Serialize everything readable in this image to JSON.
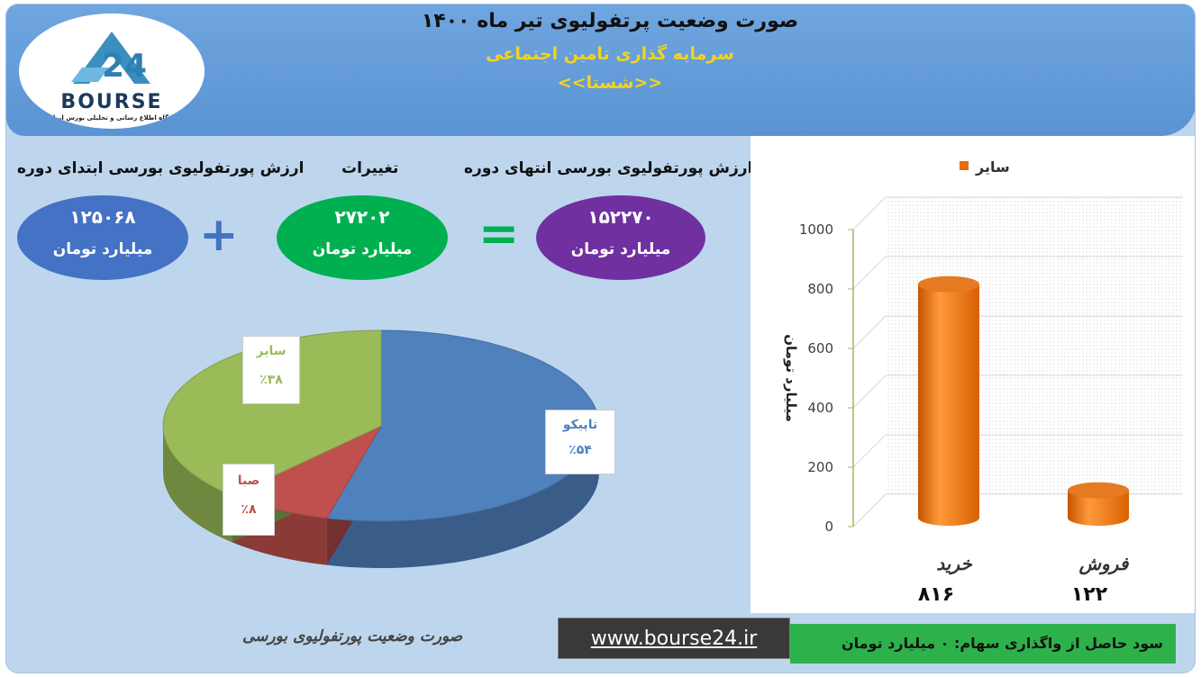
{
  "banner": {
    "title": "صورت وضعیت پرتفولیوی تیر ماه ۱۴۰۰",
    "subtitle": "سرمایه گذاری تامین اجتماعی",
    "subtitle2": "<<شستا>>",
    "logo_text": "BOURSE",
    "logo_sub": "پایگاه اطلاع رسانی و تحلیلی بورس ایران"
  },
  "summary": {
    "start": {
      "header": "ارزش پورتفولیوی بورسی ابتدای دوره",
      "value": "۱۲۵۰۶۸",
      "unit": "میلیارد تومان",
      "color": "#4472c4"
    },
    "change": {
      "header": "تغییرات",
      "value": "۲۷۲۰۲",
      "unit": "میلیارد تومان",
      "color": "#00b050"
    },
    "end": {
      "header": "ارزش پورتفولیوی بورسی انتهای دوره",
      "value": "۱۵۲۲۷۰",
      "unit": "میلیارد تومان",
      "color": "#7030a0"
    },
    "plus_sign": "+",
    "equals_sign": "="
  },
  "chart_data": [
    {
      "type": "pie",
      "slices": [
        {
          "label": "تاپیکو",
          "value": 54,
          "display": "٪۵۴",
          "color": "#4f81bd"
        },
        {
          "label": "صبا",
          "value": 8,
          "display": "٪۸",
          "color": "#c0504d"
        },
        {
          "label": "سایر",
          "value": 38,
          "display": "٪۳۸",
          "color": "#9bbb59"
        }
      ]
    },
    {
      "type": "bar",
      "legend": "سایر",
      "legend_color": "#e46c0a",
      "categories": [
        "خرید",
        "فروش"
      ],
      "values": [
        816,
        122
      ],
      "value_labels": [
        "۸۱۶",
        "۱۲۲"
      ],
      "ylabel": "میلیارد تومان",
      "ylim": [
        0,
        1000
      ],
      "yticks": [
        "1000",
        "800",
        "600",
        "400",
        "200",
        "0"
      ],
      "grid": true
    }
  ],
  "footer": {
    "caption": "صورت وضعیت پورتفولیوی بورسی",
    "url": "www.bourse24.ir",
    "profit_text": "سود حاصل از واگذاری سهام: ۰ میلیارد تومان"
  }
}
